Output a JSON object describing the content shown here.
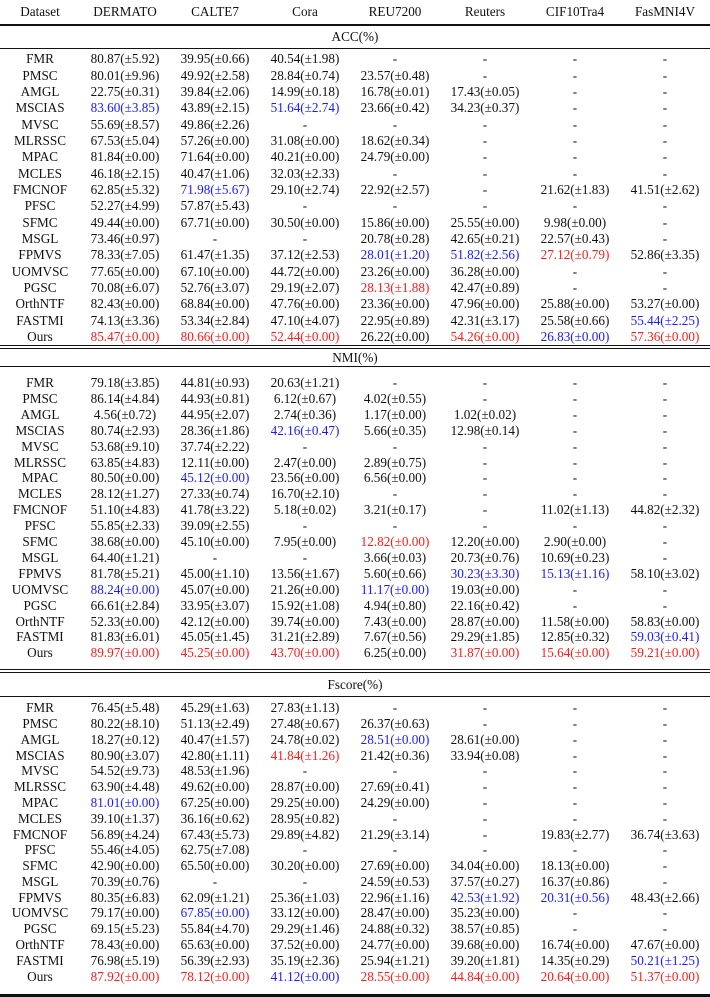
{
  "columns": [
    "Dataset",
    "DERMATO",
    "CALTE7",
    "Cora",
    "REU7200",
    "Reuters",
    "CIF10Tra4",
    "FasMNI4V"
  ],
  "colors": {
    "red": "#ff1a1a",
    "blue": "#1a1aff"
  },
  "sections": [
    {
      "title": "ACC(%)",
      "rows": [
        [
          "FMR",
          "80.87(±5.92)",
          "39.95(±0.66)",
          "40.54(±1.98)",
          "-",
          "-",
          "-",
          "-"
        ],
        [
          "PMSC",
          "80.01(±9.96)",
          "49.92(±2.58)",
          "28.84(±0.74)",
          "23.57(±0.48)",
          "-",
          "-",
          "-"
        ],
        [
          "AMGL",
          "22.75(±0.31)",
          "39.84(±2.06)",
          "14.99(±0.18)",
          "16.78(±0.01)",
          "17.43(±0.05)",
          "-",
          "-"
        ],
        [
          "MSCIAS",
          {
            "v": "83.60(±3.85)",
            "hl": "blue"
          },
          "43.89(±2.15)",
          {
            "v": "51.64(±2.74)",
            "hl": "blue"
          },
          "23.66(±0.42)",
          "34.23(±0.37)",
          "-",
          "-"
        ],
        [
          "MVSC",
          "55.69(±8.57)",
          "49.86(±2.26)",
          "-",
          "-",
          "-",
          "-",
          "-"
        ],
        [
          "MLRSSC",
          "67.53(±5.04)",
          "57.26(±0.00)",
          "31.08(±0.00)",
          "18.62(±0.34)",
          "-",
          "-",
          "-"
        ],
        [
          "MPAC",
          "81.84(±0.00)",
          "71.64(±0.00)",
          "40.21(±0.00)",
          "24.79(±0.00)",
          "-",
          "-",
          "-"
        ],
        [
          "MCLES",
          "46.18(±2.15)",
          "40.47(±1.06)",
          "32.03(±2.33)",
          "-",
          "-",
          "-",
          "-"
        ],
        [
          "FMCNOF",
          "62.85(±5.32)",
          {
            "v": "71.98(±5.67)",
            "hl": "blue"
          },
          "29.10(±2.74)",
          "22.92(±2.57)",
          "-",
          "21.62(±1.83)",
          "41.51(±2.62)"
        ],
        [
          "PFSC",
          "52.27(±4.99)",
          "57.87(±5.43)",
          "-",
          "-",
          "-",
          "-",
          "-"
        ],
        [
          "SFMC",
          "49.44(±0.00)",
          "67.71(±0.00)",
          "30.50(±0.00)",
          "15.86(±0.00)",
          "25.55(±0.00)",
          "9.98(±0.00)",
          "-"
        ],
        [
          "MSGL",
          "73.46(±0.97)",
          "-",
          "-",
          "20.78(±0.28)",
          "42.65(±0.21)",
          "22.57(±0.43)",
          "-"
        ],
        [
          "FPMVS",
          "78.33(±7.05)",
          "61.47(±1.35)",
          "37.12(±2.53)",
          {
            "v": "28.01(±1.20)",
            "hl": "blue"
          },
          {
            "v": "51.82(±2.56)",
            "hl": "blue"
          },
          {
            "v": "27.12(±0.79)",
            "hl": "red"
          },
          "52.86(±3.35)"
        ],
        [
          "UOMVSC",
          "77.65(±0.00)",
          "67.10(±0.00)",
          "44.72(±0.00)",
          "23.26(±0.00)",
          "36.28(±0.00)",
          "-",
          "-"
        ],
        [
          "PGSC",
          "70.08(±6.07)",
          "52.76(±3.07)",
          "29.19(±2.07)",
          {
            "v": "28.13(±1.88)",
            "hl": "red"
          },
          "42.47(±0.89)",
          "-",
          "-"
        ],
        [
          "OrthNTF",
          "82.43(±0.00)",
          "68.84(±0.00)",
          "47.76(±0.00)",
          "23.36(±0.00)",
          "47.96(±0.00)",
          "25.88(±0.00)",
          "53.27(±0.00)"
        ],
        [
          "FASTMI",
          "74.13(±3.36)",
          "53.34(±2.84)",
          "47.10(±4.07)",
          "22.95(±0.89)",
          "42.31(±3.17)",
          "25.58(±0.66)",
          {
            "v": "55.44(±2.25)",
            "hl": "blue"
          }
        ],
        [
          "Ours",
          {
            "v": "85.47(±0.00)",
            "hl": "red"
          },
          {
            "v": "80.66(±0.00)",
            "hl": "red"
          },
          {
            "v": "52.44(±0.00)",
            "hl": "red"
          },
          "26.22(±0.00)",
          {
            "v": "54.26(±0.00)",
            "hl": "red"
          },
          {
            "v": "26.83(±0.00)",
            "hl": "blue"
          },
          {
            "v": "57.36(±0.00)",
            "hl": "red"
          }
        ]
      ]
    },
    {
      "title": "NMI(%)",
      "rows": [
        [
          "FMR",
          "79.18(±3.85)",
          "44.81(±0.93)",
          "20.63(±1.21)",
          "-",
          "-",
          "-",
          "-"
        ],
        [
          "PMSC",
          "86.14(±4.84)",
          "44.93(±0.81)",
          "6.12(±0.67)",
          "4.02(±0.55)",
          "-",
          "-",
          "-"
        ],
        [
          "AMGL",
          "4.56(±0.72)",
          "44.95(±2.07)",
          "2.74(±0.36)",
          "1.17(±0.00)",
          "1.02(±0.02)",
          "-",
          "-"
        ],
        [
          "MSCIAS",
          "80.74(±2.93)",
          "28.36(±1.86)",
          {
            "v": "42.16(±0.47)",
            "hl": "blue"
          },
          "5.66(±0.35)",
          "12.98(±0.14)",
          "-",
          "-"
        ],
        [
          "MVSC",
          "53.68(±9.10)",
          "37.74(±2.22)",
          "-",
          "-",
          "-",
          "-",
          "-"
        ],
        [
          "MLRSSC",
          "63.85(±4.83)",
          "12.11(±0.00)",
          "2.47(±0.00)",
          "2.89(±0.75)",
          "-",
          "-",
          "-"
        ],
        [
          "MPAC",
          "80.50(±0.00)",
          {
            "v": "45.12(±0.00)",
            "hl": "blue"
          },
          "23.56(±0.00)",
          "6.56(±0.00)",
          "-",
          "-",
          "-"
        ],
        [
          "MCLES",
          "28.12(±1.27)",
          "27.33(±0.74)",
          "16.70(±2.10)",
          "-",
          "-",
          "-",
          "-"
        ],
        [
          "FMCNOF",
          "51.10(±4.83)",
          "41.78(±3.22)",
          "5.18(±0.02)",
          "3.21(±0.17)",
          "-",
          "11.02(±1.13)",
          "44.82(±2.32)"
        ],
        [
          "PFSC",
          "55.85(±2.33)",
          "39.09(±2.55)",
          "-",
          "-",
          "-",
          "-",
          "-"
        ],
        [
          "SFMC",
          "38.68(±0.00)",
          "45.10(±0.00)",
          "7.95(±0.00)",
          {
            "v": "12.82(±0.00)",
            "hl": "red"
          },
          "12.20(±0.00)",
          "2.90(±0.00)",
          "-"
        ],
        [
          "MSGL",
          "64.40(±1.21)",
          "-",
          "-",
          "3.66(±0.03)",
          "20.73(±0.76)",
          "10.69(±0.23)",
          "-"
        ],
        [
          "FPMVS",
          "81.78(±5.21)",
          "45.00(±1.10)",
          "13.56(±1.67)",
          "5.60(±0.66)",
          {
            "v": "30.23(±3.30)",
            "hl": "blue"
          },
          {
            "v": "15.13(±1.16)",
            "hl": "blue"
          },
          "58.10(±3.02)"
        ],
        [
          "UOMVSC",
          {
            "v": "88.24(±0.00)",
            "hl": "blue"
          },
          "45.07(±0.00)",
          "21.26(±0.00)",
          {
            "v": "11.17(±0.00)",
            "hl": "blue"
          },
          "19.03(±0.00)",
          "-",
          "-"
        ],
        [
          "PGSC",
          "66.61(±2.84)",
          "33.95(±3.07)",
          "15.92(±1.08)",
          "4.94(±0.80)",
          "22.16(±0.42)",
          "-",
          "-"
        ],
        [
          "OrthNTF",
          "52.33(±0.00)",
          "42.12(±0.00)",
          "39.74(±0.00)",
          "7.43(±0.00)",
          "28.87(±0.00)",
          "11.58(±0.00)",
          "58.83(±0.00)"
        ],
        [
          "FASTMI",
          "81.83(±6.01)",
          "45.05(±1.45)",
          "31.21(±2.89)",
          "7.67(±0.56)",
          "29.29(±1.85)",
          "12.85(±0.32)",
          {
            "v": "59.03(±0.41)",
            "hl": "blue"
          }
        ],
        [
          "Ours",
          {
            "v": "89.97(±0.00)",
            "hl": "red"
          },
          {
            "v": "45.25(±0.00)",
            "hl": "red"
          },
          {
            "v": "43.70(±0.00)",
            "hl": "red"
          },
          "6.25(±0.00)",
          {
            "v": "31.87(±0.00)",
            "hl": "red"
          },
          {
            "v": "15.64(±0.00)",
            "hl": "red"
          },
          {
            "v": "59.21(±0.00)",
            "hl": "red"
          }
        ]
      ]
    },
    {
      "title": "Fscore(%)",
      "rows": [
        [
          "FMR",
          "76.45(±5.48)",
          "45.29(±1.63)",
          "27.83(±1.13)",
          "-",
          "-",
          "-",
          "-"
        ],
        [
          "PMSC",
          "80.22(±8.10)",
          "51.13(±2.49)",
          "27.48(±0.67)",
          "26.37(±0.63)",
          "-",
          "-",
          "-"
        ],
        [
          "AMGL",
          "18.27(±0.12)",
          "40.47(±1.57)",
          "24.78(±0.02)",
          {
            "v": "28.51(±0.00)",
            "hl": "blue"
          },
          "28.61(±0.00)",
          "-",
          "-"
        ],
        [
          "MSCIAS",
          "80.90(±3.07)",
          "42.80(±1.11)",
          {
            "v": "41.84(±1.26)",
            "hl": "red"
          },
          "21.42(±0.36)",
          "33.94(±0.08)",
          "-",
          "-"
        ],
        [
          "MVSC",
          "54.52(±9.73)",
          "48.53(±1.96)",
          "-",
          "-",
          "-",
          "-",
          "-"
        ],
        [
          "MLRSSC",
          "63.90(±4.48)",
          "49.62(±0.00)",
          "28.87(±0.00)",
          "27.69(±0.41)",
          "-",
          "-",
          "-"
        ],
        [
          "MPAC",
          {
            "v": "81.01(±0.00)",
            "hl": "blue"
          },
          "67.25(±0.00)",
          "29.25(±0.00)",
          "24.29(±0.00)",
          "-",
          "-",
          "-"
        ],
        [
          "MCLES",
          "39.10(±1.37)",
          "36.16(±0.62)",
          "28.95(±0.82)",
          "-",
          "-",
          "-",
          "-"
        ],
        [
          "FMCNOF",
          "56.89(±4.24)",
          "67.43(±5.73)",
          "29.89(±4.82)",
          "21.29(±3.14)",
          "-",
          "19.83(±2.77)",
          "36.74(±3.63)"
        ],
        [
          "PFSC",
          "55.46(±4.05)",
          "62.75(±7.08)",
          "-",
          "-",
          "-",
          "-",
          "-"
        ],
        [
          "SFMC",
          "42.90(±0.00)",
          "65.50(±0.00)",
          "30.20(±0.00)",
          "27.69(±0.00)",
          "34.04(±0.00)",
          "18.13(±0.00)",
          "-"
        ],
        [
          "MSGL",
          "70.39(±0.76)",
          "-",
          "-",
          "24.59(±0.53)",
          "37.57(±0.27)",
          "16.37(±0.86)",
          "-"
        ],
        [
          "FPMVS",
          "80.35(±6.83)",
          "62.09(±1.21)",
          "25.36(±1.03)",
          "22.96(±1.16)",
          {
            "v": "42.53(±1.92)",
            "hl": "blue"
          },
          {
            "v": "20.31(±0.56)",
            "hl": "blue"
          },
          "48.43(±2.66)"
        ],
        [
          "UOMVSC",
          "79.17(±0.00)",
          {
            "v": "67.85(±0.00)",
            "hl": "blue"
          },
          "33.12(±0.00)",
          "28.47(±0.00)",
          "35.23(±0.00)",
          "-",
          "-"
        ],
        [
          "PGSC",
          "69.15(±5.23)",
          "55.84(±4.70)",
          "29.29(±1.46)",
          "24.88(±0.32)",
          "38.57(±0.85)",
          "-",
          "-"
        ],
        [
          "OrthNTF",
          "78.43(±0.00)",
          "65.63(±0.00)",
          "37.52(±0.00)",
          "24.77(±0.00)",
          "39.68(±0.00)",
          "16.74(±0.00)",
          "47.67(±0.00)"
        ],
        [
          "FASTMI",
          "76.98(±5.19)",
          "56.39(±2.93)",
          "35.19(±2.36)",
          "25.94(±1.21)",
          "39.20(±1.81)",
          "14.35(±0.29)",
          {
            "v": "50.21(±1.25)",
            "hl": "blue"
          }
        ],
        [
          "Ours",
          {
            "v": "87.92(±0.00)",
            "hl": "red"
          },
          {
            "v": "78.12(±0.00)",
            "hl": "red"
          },
          {
            "v": "41.12(±0.00)",
            "hl": "blue"
          },
          {
            "v": "28.55(±0.00)",
            "hl": "red"
          },
          {
            "v": "44.84(±0.00)",
            "hl": "red"
          },
          {
            "v": "20.64(±0.00)",
            "hl": "red"
          },
          {
            "v": "51.37(±0.00)",
            "hl": "red"
          }
        ]
      ]
    }
  ]
}
